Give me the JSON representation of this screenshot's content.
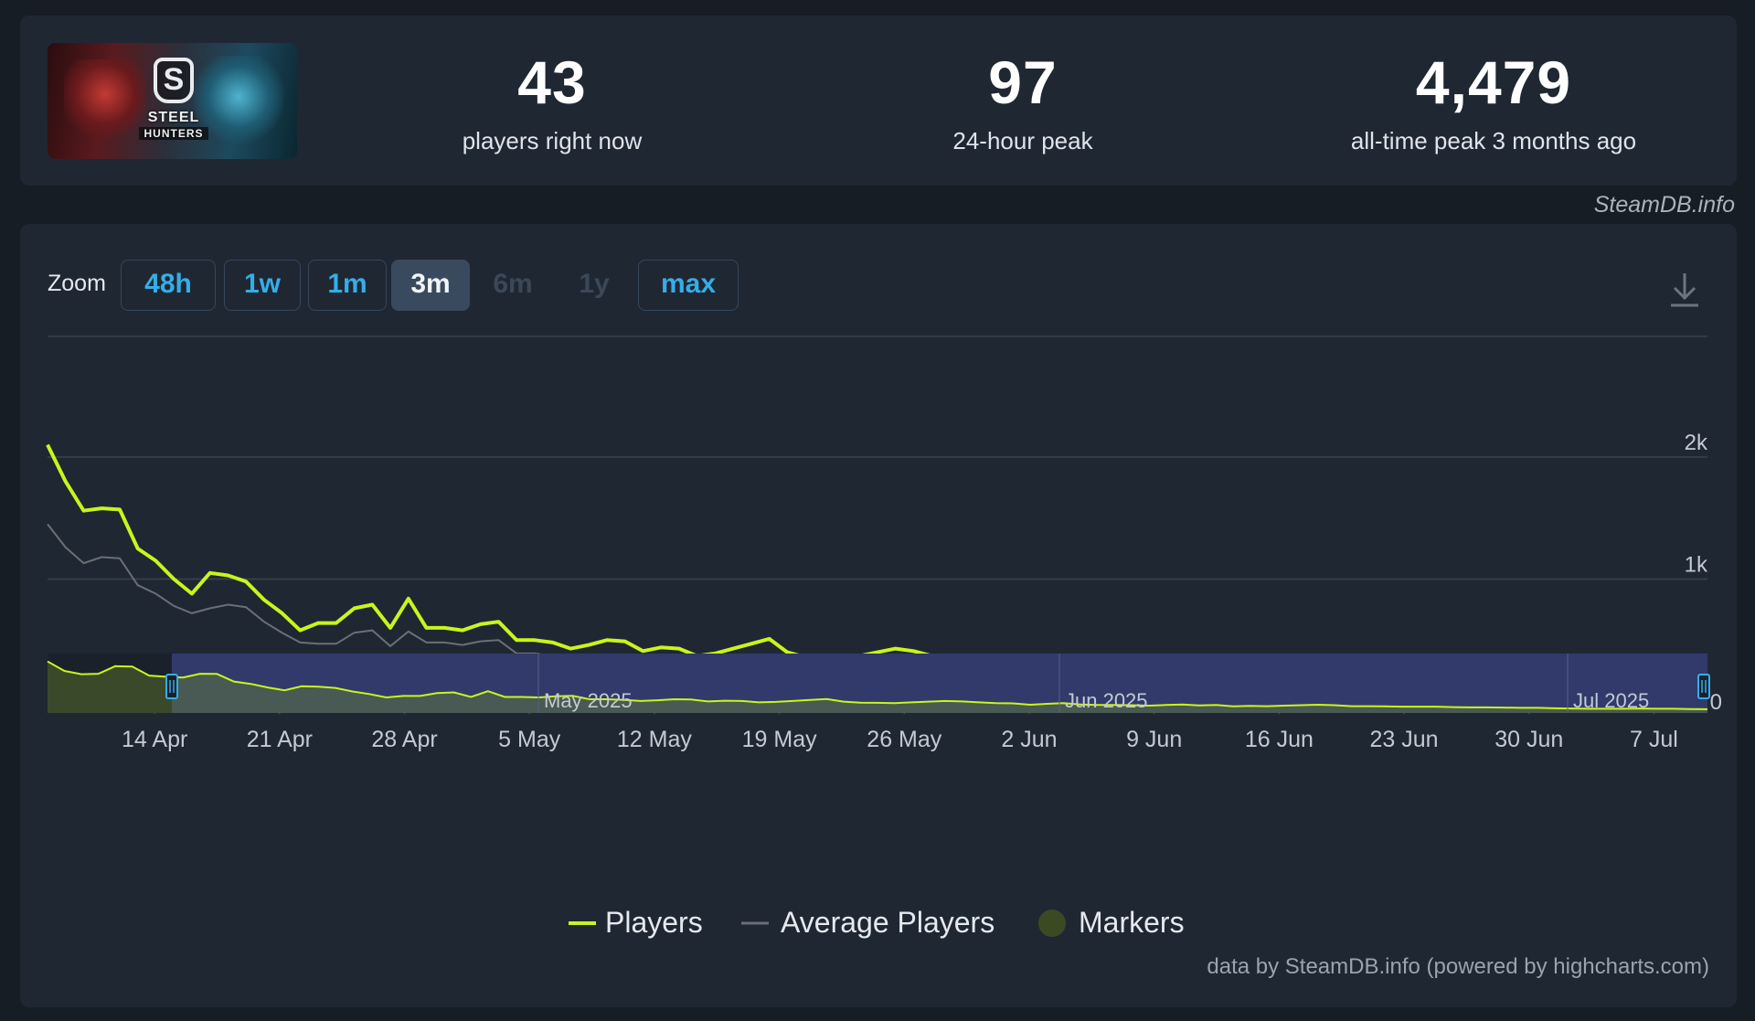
{
  "game": {
    "logo_text_top": "STEEL",
    "logo_text_bottom": "HUNTERS",
    "logo_letter": "S"
  },
  "stats": {
    "current": {
      "value": "43",
      "label": "players right now"
    },
    "peak24": {
      "value": "97",
      "label": "24-hour peak"
    },
    "alltime": {
      "value": "4,479",
      "label": "all-time peak 3 months ago"
    }
  },
  "credit_top": "SteamDB.info",
  "credit_bottom": "data by SteamDB.info (powered by highcharts.com)",
  "zoom": {
    "label": "Zoom",
    "buttons": [
      {
        "label": "48h",
        "state": "enabled"
      },
      {
        "label": "1w",
        "state": "enabled"
      },
      {
        "label": "1m",
        "state": "enabled"
      },
      {
        "label": "3m",
        "state": "active"
      },
      {
        "label": "6m",
        "state": "disabled"
      },
      {
        "label": "1y",
        "state": "disabled"
      },
      {
        "label": "max",
        "state": "enabled"
      }
    ]
  },
  "icons": {
    "download": "download-icon"
  },
  "colors": {
    "players": "#c8f51c",
    "average": "#6b6f74",
    "markers": "#3b4a23",
    "navigator_mask": "#313a6b",
    "background": "#1f2733",
    "accent": "#34aee8"
  },
  "chart_data": {
    "type": "line",
    "title": "",
    "xlabel": "",
    "ylabel": "",
    "x_start": "2025-04-08",
    "x_end": "2025-07-10",
    "x_ticks": [
      "14 Apr",
      "21 Apr",
      "28 Apr",
      "5 May",
      "12 May",
      "19 May",
      "26 May",
      "2 Jun",
      "9 Jun",
      "16 Jun",
      "23 Jun",
      "30 Jun",
      "7 Jul"
    ],
    "y_ticks": [
      "0",
      "1k",
      "2k"
    ],
    "ylim": [
      0,
      2000
    ],
    "grid": true,
    "legend_placement": "bottom",
    "series": [
      {
        "name": "Players",
        "values": [
          2100,
          1800,
          1560,
          1580,
          1570,
          1250,
          1150,
          1000,
          880,
          1050,
          1030,
          980,
          830,
          720,
          580,
          640,
          640,
          760,
          790,
          600,
          840,
          600,
          600,
          580,
          630,
          650,
          500,
          500,
          480,
          430,
          460,
          500,
          490,
          410,
          440,
          430,
          370,
          390,
          430,
          470,
          510,
          400,
          360,
          350,
          340,
          370,
          400,
          430,
          410,
          370,
          340,
          330,
          270,
          310,
          340,
          280,
          260,
          260,
          250,
          230,
          260,
          280,
          240,
          260,
          200,
          220,
          210,
          230,
          250,
          270,
          250,
          210,
          210,
          200,
          190,
          190,
          190,
          170,
          160,
          160,
          150,
          140,
          140,
          120,
          110,
          100,
          100,
          100,
          110,
          100,
          100,
          90,
          80
        ]
      },
      {
        "name": "Average Players",
        "values": [
          1450,
          1260,
          1130,
          1180,
          1170,
          950,
          880,
          780,
          720,
          760,
          790,
          770,
          650,
          560,
          480,
          470,
          470,
          560,
          580,
          450,
          570,
          480,
          480,
          460,
          490,
          500,
          390,
          390,
          370,
          340,
          350,
          370,
          370,
          320,
          320,
          310,
          290,
          290,
          310,
          340,
          360,
          310,
          280,
          270,
          260,
          270,
          290,
          300,
          300,
          280,
          250,
          250,
          220,
          240,
          250,
          210,
          200,
          200,
          190,
          180,
          190,
          200,
          180,
          190,
          160,
          170,
          160,
          180,
          190,
          200,
          190,
          170,
          160,
          150,
          150,
          150,
          150,
          140,
          130,
          130,
          120,
          120,
          120,
          110,
          100,
          95,
          95,
          95,
          100,
          95,
          95,
          90,
          85
        ]
      }
    ],
    "navigator": {
      "labels": [
        "May 2025",
        "Jun 2025",
        "Jul 2025"
      ]
    }
  },
  "legend": {
    "players": "Players",
    "average": "Average Players",
    "markers": "Markers"
  }
}
